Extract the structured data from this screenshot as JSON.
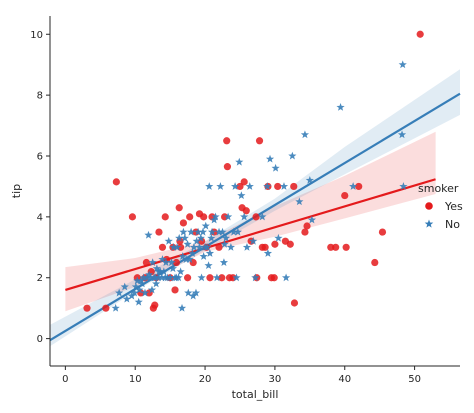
{
  "chart_data": {
    "type": "scatter",
    "xlabel": "total_bill",
    "ylabel": "tip",
    "xlim": [
      -2.2,
      56.5
    ],
    "ylim": [
      -0.9,
      10.6
    ],
    "xticks": [
      0,
      10,
      20,
      30,
      40,
      50
    ],
    "yticks": [
      0,
      2,
      4,
      6,
      8,
      10
    ],
    "grid": false,
    "legend": {
      "title": "smoker",
      "placement": "right",
      "entries": [
        {
          "label": "Yes",
          "marker": "circle",
          "color": "#e41a1c"
        },
        {
          "label": "No",
          "marker": "star",
          "color": "#377eb8"
        }
      ]
    },
    "series": [
      {
        "name": "Yes",
        "marker": "circle",
        "color": "#e41a1c",
        "points": [
          [
            3.1,
            1.0
          ],
          [
            5.8,
            1.0
          ],
          [
            7.3,
            5.15
          ],
          [
            9.6,
            4.0
          ],
          [
            10.3,
            2.0
          ],
          [
            10.8,
            1.5
          ],
          [
            11.4,
            2.0
          ],
          [
            11.6,
            2.5
          ],
          [
            12.0,
            1.5
          ],
          [
            12.3,
            2.2
          ],
          [
            12.6,
            1.0
          ],
          [
            12.8,
            1.1
          ],
          [
            13.0,
            2.0
          ],
          [
            13.4,
            3.5
          ],
          [
            13.9,
            3.0
          ],
          [
            14.3,
            4.0
          ],
          [
            14.5,
            2.6
          ],
          [
            15.0,
            2.0
          ],
          [
            15.4,
            3.0
          ],
          [
            15.7,
            1.6
          ],
          [
            15.9,
            2.5
          ],
          [
            16.3,
            4.3
          ],
          [
            16.4,
            3.2
          ],
          [
            16.5,
            3.0
          ],
          [
            16.9,
            3.8
          ],
          [
            17.5,
            2.0
          ],
          [
            17.8,
            4.0
          ],
          [
            18.3,
            2.5
          ],
          [
            18.7,
            3.5
          ],
          [
            19.2,
            4.1
          ],
          [
            19.5,
            3.2
          ],
          [
            19.8,
            4.0
          ],
          [
            20.2,
            3.0
          ],
          [
            20.7,
            2.0
          ],
          [
            21.0,
            4.0
          ],
          [
            21.3,
            3.5
          ],
          [
            22.0,
            3.0
          ],
          [
            22.4,
            2.0
          ],
          [
            22.8,
            4.0
          ],
          [
            23.1,
            6.5
          ],
          [
            23.2,
            5.65
          ],
          [
            23.5,
            2.0
          ],
          [
            24.0,
            2.0
          ],
          [
            25.0,
            5.0
          ],
          [
            25.3,
            4.3
          ],
          [
            25.6,
            5.15
          ],
          [
            25.9,
            4.2
          ],
          [
            26.6,
            3.2
          ],
          [
            27.3,
            4.0
          ],
          [
            27.4,
            2.0
          ],
          [
            27.8,
            6.5
          ],
          [
            28.2,
            3.0
          ],
          [
            28.6,
            3.0
          ],
          [
            29.0,
            5.0
          ],
          [
            29.5,
            2.0
          ],
          [
            29.9,
            2.0
          ],
          [
            30.0,
            3.1
          ],
          [
            30.4,
            5.0
          ],
          [
            31.5,
            3.2
          ],
          [
            32.2,
            3.1
          ],
          [
            32.7,
            5.0
          ],
          [
            32.8,
            1.17
          ],
          [
            34.3,
            3.5
          ],
          [
            34.6,
            3.7
          ],
          [
            38.0,
            3.0
          ],
          [
            38.7,
            3.0
          ],
          [
            40.0,
            4.7
          ],
          [
            40.2,
            3.0
          ],
          [
            42.0,
            5.0
          ],
          [
            44.3,
            2.5
          ],
          [
            45.4,
            3.5
          ],
          [
            50.8,
            10.0
          ]
        ]
      },
      {
        "name": "No",
        "marker": "star",
        "color": "#377eb8",
        "points": [
          [
            7.2,
            1.0
          ],
          [
            7.7,
            1.5
          ],
          [
            8.5,
            1.7
          ],
          [
            8.8,
            1.3
          ],
          [
            9.5,
            1.4
          ],
          [
            9.9,
            1.5
          ],
          [
            10.1,
            1.7
          ],
          [
            10.3,
            1.9
          ],
          [
            10.5,
            1.2
          ],
          [
            10.6,
            1.6
          ],
          [
            10.8,
            1.9
          ],
          [
            11.0,
            1.8
          ],
          [
            11.2,
            2.0
          ],
          [
            11.4,
            1.5
          ],
          [
            11.7,
            2.0
          ],
          [
            11.9,
            3.4
          ],
          [
            12.0,
            2.1
          ],
          [
            12.2,
            2.0
          ],
          [
            12.4,
            1.6
          ],
          [
            12.5,
            2.5
          ],
          [
            12.7,
            2.0
          ],
          [
            12.9,
            2.0
          ],
          [
            13.0,
            1.8
          ],
          [
            13.1,
            2.3
          ],
          [
            13.3,
            2.0
          ],
          [
            13.4,
            2.2
          ],
          [
            13.6,
            2.2
          ],
          [
            13.8,
            2.0
          ],
          [
            13.9,
            2.6
          ],
          [
            14.1,
            2.2
          ],
          [
            14.3,
            2.0
          ],
          [
            14.4,
            2.5
          ],
          [
            14.6,
            2.0
          ],
          [
            14.8,
            3.2
          ],
          [
            15.0,
            2.0
          ],
          [
            15.2,
            2.5
          ],
          [
            15.4,
            2.3
          ],
          [
            15.5,
            3.0
          ],
          [
            15.7,
            2.0
          ],
          [
            15.9,
            2.0
          ],
          [
            16.0,
            3.0
          ],
          [
            16.2,
            2.0
          ],
          [
            16.3,
            3.3
          ],
          [
            16.5,
            2.2
          ],
          [
            16.7,
            1.0
          ],
          [
            16.8,
            2.7
          ],
          [
            16.9,
            3.5
          ],
          [
            17.1,
            3.3
          ],
          [
            17.3,
            2.6
          ],
          [
            17.5,
            3.1
          ],
          [
            17.6,
            1.5
          ],
          [
            17.8,
            2.6
          ],
          [
            18.0,
            3.5
          ],
          [
            18.2,
            2.8
          ],
          [
            18.3,
            1.4
          ],
          [
            18.4,
            3.0
          ],
          [
            18.7,
            1.5
          ],
          [
            18.8,
            3.2
          ],
          [
            19.0,
            3.5
          ],
          [
            19.2,
            3.0
          ],
          [
            19.4,
            3.3
          ],
          [
            19.5,
            2.0
          ],
          [
            19.7,
            3.5
          ],
          [
            19.8,
            2.7
          ],
          [
            20.0,
            3.0
          ],
          [
            20.1,
            3.7
          ],
          [
            20.3,
            3.0
          ],
          [
            20.5,
            2.4
          ],
          [
            20.6,
            5.0
          ],
          [
            20.7,
            2.8
          ],
          [
            20.9,
            3.3
          ],
          [
            21.0,
            3.5
          ],
          [
            21.3,
            3.9
          ],
          [
            21.5,
            4.0
          ],
          [
            21.7,
            2.0
          ],
          [
            22.0,
            3.5
          ],
          [
            22.2,
            5.0
          ],
          [
            22.5,
            3.5
          ],
          [
            22.7,
            2.5
          ],
          [
            22.8,
            3.1
          ],
          [
            23.0,
            3.3
          ],
          [
            23.3,
            4.0
          ],
          [
            23.7,
            3.0
          ],
          [
            24.1,
            3.5
          ],
          [
            24.3,
            5.0
          ],
          [
            24.5,
            2.0
          ],
          [
            24.7,
            3.5
          ],
          [
            24.9,
            5.8
          ],
          [
            25.2,
            4.7
          ],
          [
            25.6,
            4.0
          ],
          [
            26.0,
            3.0
          ],
          [
            26.4,
            5.0
          ],
          [
            26.9,
            3.2
          ],
          [
            27.2,
            2.0
          ],
          [
            28.2,
            4.0
          ],
          [
            28.9,
            5.0
          ],
          [
            29.0,
            2.8
          ],
          [
            29.3,
            5.9
          ],
          [
            30.1,
            5.6
          ],
          [
            30.5,
            3.3
          ],
          [
            31.3,
            5.0
          ],
          [
            31.6,
            2.0
          ],
          [
            32.5,
            6.0
          ],
          [
            33.5,
            4.5
          ],
          [
            34.3,
            6.7
          ],
          [
            35.0,
            5.2
          ],
          [
            35.3,
            3.9
          ],
          [
            39.4,
            7.6
          ],
          [
            41.2,
            5.0
          ],
          [
            48.3,
            9.0
          ],
          [
            48.2,
            6.7
          ],
          [
            48.4,
            5.0
          ]
        ]
      }
    ],
    "regressions": [
      {
        "name": "Yes",
        "color": "#e41a1c",
        "x_range": [
          0,
          53
        ],
        "intercept": 1.6,
        "slope": 0.0686,
        "ci_lower": [
          [
            0,
            0.9
          ],
          [
            10,
            1.7
          ],
          [
            20,
            2.85
          ],
          [
            30,
            3.35
          ],
          [
            40,
            3.95
          ],
          [
            53,
            4.75
          ]
        ],
        "ci_upper": [
          [
            0,
            2.35
          ],
          [
            10,
            2.65
          ],
          [
            20,
            3.2
          ],
          [
            30,
            4.35
          ],
          [
            40,
            5.35
          ],
          [
            53,
            6.8
          ]
        ]
      },
      {
        "name": "No",
        "color": "#377eb8",
        "x_range": [
          -2.2,
          56.5
        ],
        "intercept": 0.25,
        "slope": 0.138,
        "ci_lower": [
          [
            -2.2,
            -0.25
          ],
          [
            10,
            1.55
          ],
          [
            20,
            2.9
          ],
          [
            30,
            4.2
          ],
          [
            40,
            5.4
          ],
          [
            56.5,
            7.35
          ]
        ],
        "ci_upper": [
          [
            -2.2,
            0.45
          ],
          [
            10,
            1.95
          ],
          [
            20,
            3.2
          ],
          [
            30,
            4.6
          ],
          [
            40,
            6.3
          ],
          [
            56.5,
            8.85
          ]
        ]
      }
    ]
  }
}
